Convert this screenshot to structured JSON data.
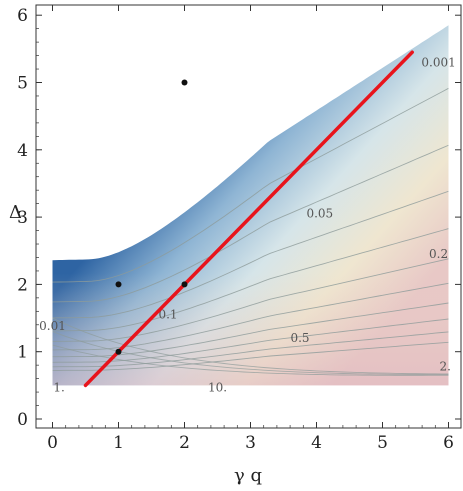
{
  "chart_data": {
    "type": "contour",
    "xlabel": "γ q",
    "ylabel": "Δ",
    "xlim": [
      0,
      6
    ],
    "ylim": [
      0,
      6
    ],
    "xticks": [
      0,
      1,
      2,
      3,
      4,
      5,
      6
    ],
    "yticks": [
      0,
      1,
      2,
      3,
      4,
      5,
      6
    ],
    "tick_labels_x": [
      "0",
      "1",
      "2",
      "3",
      "4",
      "5",
      "6"
    ],
    "tick_labels_y": [
      "0",
      "1",
      "2",
      "3",
      "4",
      "5",
      "6"
    ],
    "contour_labels": [
      {
        "text": "0.001",
        "x": 5.85,
        "y": 5.3
      },
      {
        "text": "0.05",
        "x": 4.05,
        "y": 3.05
      },
      {
        "text": "0.2",
        "x": 5.85,
        "y": 2.45
      },
      {
        "text": "0.1",
        "x": 1.75,
        "y": 1.55
      },
      {
        "text": "0.01",
        "x": 0.0,
        "y": 1.38
      },
      {
        "text": "0.5",
        "x": 3.75,
        "y": 1.2
      },
      {
        "text": "1.",
        "x": 0.1,
        "y": 0.47
      },
      {
        "text": "10.",
        "x": 2.5,
        "y": 0.47
      },
      {
        "text": "2.",
        "x": 5.95,
        "y": 0.78
      }
    ],
    "red_line": {
      "x": [
        0.5,
        5.45
      ],
      "y": [
        0.5,
        5.45
      ]
    },
    "points": [
      {
        "x": 2,
        "y": 5
      },
      {
        "x": 1,
        "y": 2
      },
      {
        "x": 2,
        "y": 2
      },
      {
        "x": 1,
        "y": 1
      }
    ],
    "colors": {
      "dark_blue": "#2e64a3",
      "light_blue": "#c7dcea",
      "cream": "#efe9d6",
      "pink": "#e4c0c6",
      "red_line": "#e8141c",
      "contour": "#8d9b9a"
    }
  }
}
